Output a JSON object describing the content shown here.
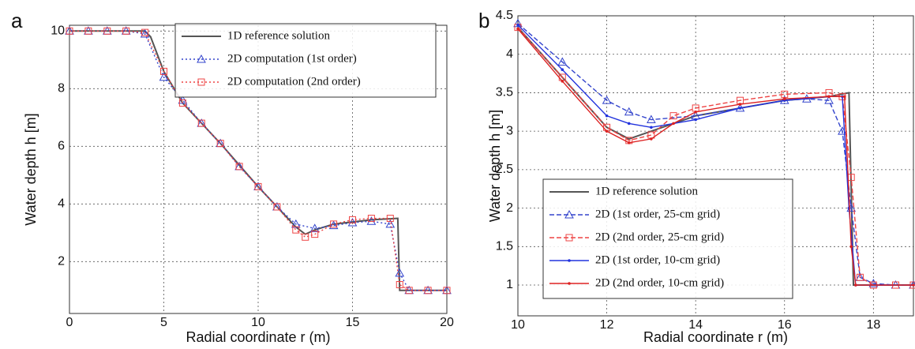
{
  "chart_data": [
    {
      "type": "line",
      "label": "a",
      "xlabel": "Radial coordinate r (m)",
      "ylabel": "Water depth h [m]",
      "xlim": [
        0,
        20
      ],
      "ylim": [
        0.2,
        10.2
      ],
      "xticks": [
        0,
        5,
        10,
        15,
        20
      ],
      "yticks": [
        2,
        4,
        6,
        8,
        10
      ],
      "grid": true,
      "legend": "upper right",
      "series": [
        {
          "name": "1D reference solution",
          "color": "#555555",
          "dash": "solid",
          "marker": "none",
          "x": [
            0,
            4,
            4.3,
            5,
            6,
            8,
            10,
            12,
            12.5,
            13,
            14,
            16,
            17.4,
            17.5,
            20
          ],
          "values": [
            10,
            10,
            9.8,
            8.6,
            7.5,
            6.1,
            4.6,
            3.2,
            2.95,
            3.1,
            3.3,
            3.45,
            3.5,
            1,
            1
          ]
        },
        {
          "name": "2D computation (1st order)",
          "color": "#3344cc",
          "dash": "dotted",
          "marker": "triangle",
          "x": [
            0,
            1,
            2,
            3,
            4,
            5,
            6,
            7,
            8,
            9,
            10,
            11,
            12,
            13,
            14,
            15,
            16,
            17,
            17.5,
            18,
            19,
            20
          ],
          "values": [
            10,
            10,
            10,
            10,
            9.9,
            8.4,
            7.6,
            6.8,
            6.1,
            5.3,
            4.6,
            3.9,
            3.3,
            3.15,
            3.25,
            3.35,
            3.4,
            3.3,
            1.6,
            1,
            1,
            1
          ]
        },
        {
          "name": "2D computation (2nd order)",
          "color": "#ee4444",
          "dash": "dotted",
          "marker": "square",
          "x": [
            0,
            1,
            2,
            3,
            4,
            5,
            6,
            7,
            8,
            9,
            10,
            11,
            12,
            12.5,
            13,
            14,
            15,
            16,
            17,
            17.5,
            18,
            19,
            20
          ],
          "values": [
            10,
            10,
            10,
            10,
            9.95,
            8.6,
            7.5,
            6.8,
            6.1,
            5.3,
            4.6,
            3.9,
            3.1,
            2.85,
            2.95,
            3.3,
            3.45,
            3.5,
            3.5,
            1.2,
            1,
            1,
            1
          ]
        }
      ]
    },
    {
      "type": "line",
      "label": "b",
      "xlabel": "Radial coordinate r (m)",
      "ylabel": "Water depth h [m]",
      "xlim": [
        10,
        18.9
      ],
      "ylim": [
        0.6,
        4.5
      ],
      "xticks": [
        10,
        12,
        14,
        16,
        18
      ],
      "yticks": [
        1,
        1.5,
        2,
        2.5,
        3,
        3.5,
        4,
        4.5
      ],
      "grid": true,
      "legend": "lower left",
      "series": [
        {
          "name": "1D reference solution",
          "color": "#555555",
          "dash": "solid",
          "marker": "none",
          "x": [
            10,
            11,
            12,
            12.5,
            13,
            14,
            15,
            16,
            17,
            17.45,
            17.55,
            18.9
          ],
          "values": [
            4.35,
            3.7,
            3.05,
            2.9,
            3.0,
            3.2,
            3.3,
            3.4,
            3.45,
            3.5,
            1,
            1
          ]
        },
        {
          "name": "2D (1st order, 25-cm grid)",
          "color": "#3344cc",
          "dash": "dashed",
          "marker": "triangle",
          "x": [
            10,
            11,
            12,
            12.5,
            13,
            14,
            15,
            16,
            16.5,
            17,
            17.3,
            17.5,
            17.7,
            18,
            18.5,
            18.9
          ],
          "values": [
            4.4,
            3.9,
            3.4,
            3.25,
            3.15,
            3.2,
            3.3,
            3.4,
            3.42,
            3.4,
            3.0,
            2.0,
            1.1,
            1.02,
            1,
            1
          ]
        },
        {
          "name": "2D (2nd order, 25-cm grid)",
          "color": "#ee4444",
          "dash": "dashed",
          "marker": "square",
          "x": [
            10,
            11,
            12,
            12.5,
            13,
            13.5,
            14,
            15,
            16,
            17,
            17.3,
            17.5,
            17.7,
            18,
            18.5,
            18.9
          ],
          "values": [
            4.35,
            3.7,
            3.05,
            2.88,
            2.95,
            3.2,
            3.3,
            3.4,
            3.48,
            3.5,
            3.45,
            2.4,
            1.1,
            1.0,
            1,
            1
          ]
        },
        {
          "name": "2D (1st order, 10-cm grid)",
          "color": "#2233dd",
          "dash": "solid",
          "marker": "dot",
          "x": [
            10,
            11,
            12,
            12.5,
            13,
            14,
            15,
            16,
            17,
            17.3,
            17.45,
            17.6,
            18.9
          ],
          "values": [
            4.38,
            3.8,
            3.2,
            3.1,
            3.05,
            3.15,
            3.3,
            3.4,
            3.45,
            3.45,
            2.0,
            1.0,
            1
          ]
        },
        {
          "name": "2D (2nd order, 10-cm grid)",
          "color": "#dd2222",
          "dash": "solid",
          "marker": "dot",
          "x": [
            10,
            11,
            12,
            12.5,
            13,
            13.5,
            14,
            15,
            16,
            17,
            17.35,
            17.5,
            17.6,
            18.9
          ],
          "values": [
            4.33,
            3.65,
            3.0,
            2.85,
            2.9,
            3.1,
            3.25,
            3.35,
            3.42,
            3.45,
            3.45,
            1.5,
            1.0,
            1
          ]
        }
      ]
    }
  ]
}
